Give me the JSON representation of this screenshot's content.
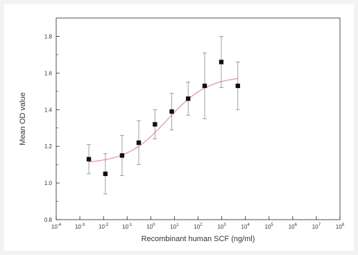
{
  "chart_data": {
    "type": "scatter",
    "title": "",
    "xlabel": "Recombinant human SCF (ng/ml)",
    "ylabel": "Mean OD value",
    "x_scale": "log",
    "xlim": [
      0.0001,
      100000000
    ],
    "ylim": [
      0.8,
      1.9
    ],
    "x_ticks": [
      {
        "value": 0.0001,
        "base": "10",
        "exp": "-4"
      },
      {
        "value": 0.001,
        "base": "10",
        "exp": "-3"
      },
      {
        "value": 0.01,
        "base": "10",
        "exp": "-2"
      },
      {
        "value": 0.1,
        "base": "10",
        "exp": "-1"
      },
      {
        "value": 1,
        "base": "10",
        "exp": "0"
      },
      {
        "value": 10,
        "base": "10",
        "exp": "1"
      },
      {
        "value": 100,
        "base": "10",
        "exp": "2"
      },
      {
        "value": 1000,
        "base": "10",
        "exp": "3"
      },
      {
        "value": 10000,
        "base": "10",
        "exp": "4"
      },
      {
        "value": 100000,
        "base": "10",
        "exp": "5"
      },
      {
        "value": 1000000,
        "base": "10",
        "exp": "6"
      },
      {
        "value": 10000000,
        "base": "10",
        "exp": "7"
      },
      {
        "value": 100000000,
        "base": "10",
        "exp": "8"
      }
    ],
    "y_ticks": [
      "0.8",
      "1.0",
      "1.2",
      "1.4",
      "1.6",
      "1.8"
    ],
    "grid": false,
    "series": [
      {
        "marker": "square",
        "color": "#111111",
        "points": [
          {
            "x": 0.0024,
            "y": 1.13,
            "err": 0.08
          },
          {
            "x": 0.012,
            "y": 1.05,
            "err": 0.11
          },
          {
            "x": 0.061,
            "y": 1.15,
            "err": 0.11
          },
          {
            "x": 0.31,
            "y": 1.22,
            "err": 0.12
          },
          {
            "x": 1.5,
            "y": 1.32,
            "err": 0.08
          },
          {
            "x": 7.7,
            "y": 1.39,
            "err": 0.1
          },
          {
            "x": 38,
            "y": 1.46,
            "err": 0.09
          },
          {
            "x": 190,
            "y": 1.53,
            "err": 0.18
          },
          {
            "x": 960,
            "y": 1.66,
            "err": 0.14
          },
          {
            "x": 4800,
            "y": 1.53,
            "err": 0.13
          }
        ]
      }
    ],
    "fit_curve": {
      "type": "sigmoidal",
      "color": "#e4a0a8",
      "bottom": 1.105,
      "top": 1.585,
      "ec50_log": 0.7,
      "slope": 0.5
    }
  }
}
